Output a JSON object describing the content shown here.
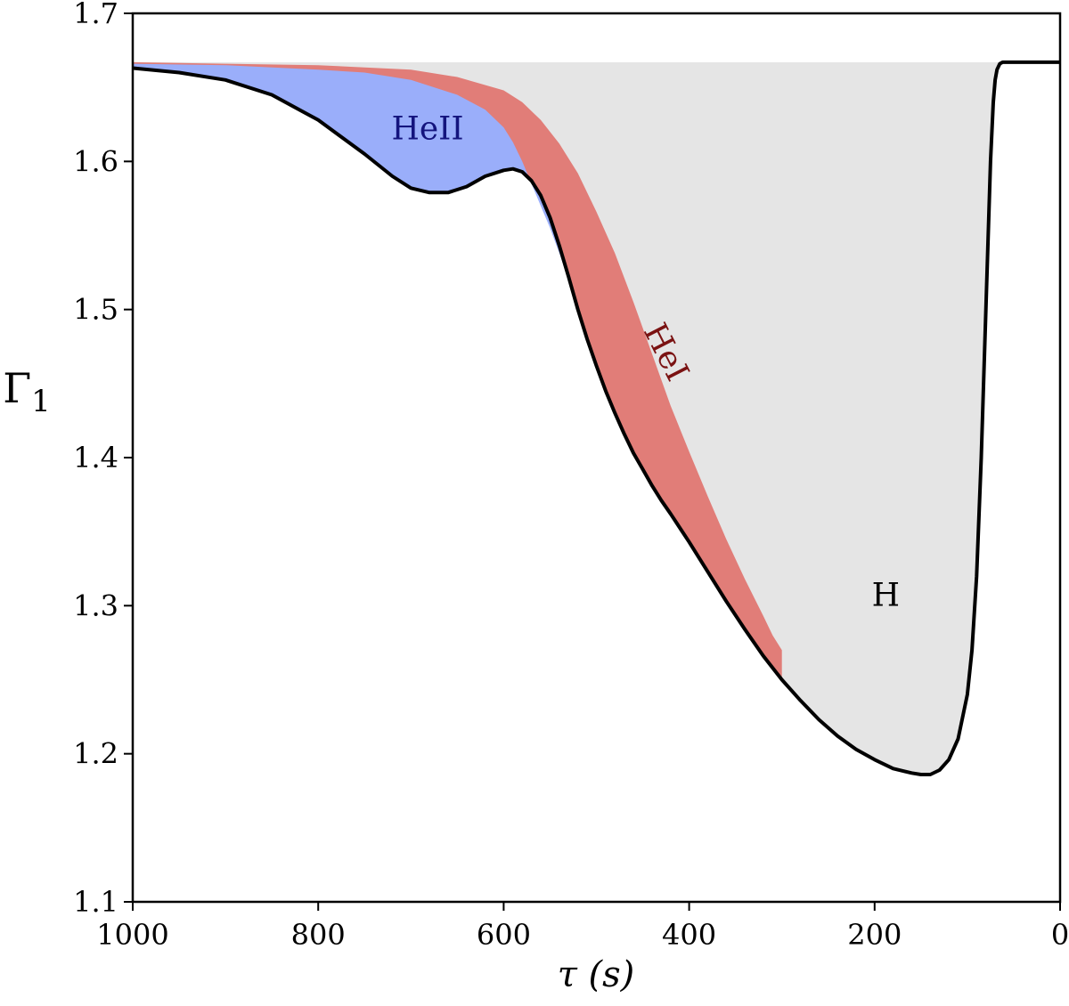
{
  "chart_data": {
    "type": "area",
    "xlabel": "τ (s)",
    "ylabel": "Γ",
    "ylabel_subscript": "1",
    "xlim": [
      1000,
      0
    ],
    "ylim": [
      1.1,
      1.7
    ],
    "x_reversed": true,
    "grid": false,
    "x_ticks": [
      1000,
      800,
      600,
      400,
      200,
      0
    ],
    "x_tick_labels": [
      "1000",
      "800",
      "600",
      "400",
      "200",
      "0"
    ],
    "y_ticks": [
      1.1,
      1.2,
      1.3,
      1.4,
      1.5,
      1.6,
      1.7
    ],
    "y_tick_labels": [
      "1.1",
      "1.2",
      "1.3",
      "1.4",
      "1.5",
      "1.6",
      "1.7"
    ],
    "reference_level": 1.667,
    "series": [
      {
        "role": "total",
        "color": "#000000",
        "x": [
          1000,
          950,
          900,
          850,
          800,
          750,
          720,
          700,
          680,
          660,
          640,
          620,
          600,
          590,
          580,
          570,
          560,
          550,
          540,
          530,
          520,
          510,
          500,
          490,
          480,
          470,
          460,
          450,
          440,
          430,
          420,
          400,
          380,
          360,
          340,
          320,
          300,
          280,
          260,
          240,
          220,
          200,
          180,
          160,
          150,
          140,
          130,
          120,
          110,
          100,
          95,
          90,
          85,
          80,
          75,
          72,
          70,
          68,
          65,
          62,
          60,
          50,
          30,
          0
        ],
        "y": [
          1.663,
          1.66,
          1.655,
          1.645,
          1.628,
          1.605,
          1.59,
          1.582,
          1.579,
          1.579,
          1.583,
          1.59,
          1.594,
          1.595,
          1.593,
          1.587,
          1.577,
          1.562,
          1.543,
          1.522,
          1.5,
          1.48,
          1.462,
          1.445,
          1.43,
          1.416,
          1.403,
          1.392,
          1.381,
          1.371,
          1.362,
          1.343,
          1.323,
          1.303,
          1.284,
          1.266,
          1.25,
          1.236,
          1.223,
          1.212,
          1.203,
          1.196,
          1.19,
          1.187,
          1.186,
          1.186,
          1.189,
          1.196,
          1.21,
          1.24,
          1.27,
          1.32,
          1.4,
          1.5,
          1.6,
          1.64,
          1.655,
          1.662,
          1.666,
          1.667,
          1.667,
          1.667,
          1.667,
          1.667
        ]
      },
      {
        "role": "HeII boundary",
        "color": "#9aaefa",
        "x": [
          1000,
          900,
          800,
          750,
          700,
          650,
          620,
          600,
          590,
          580,
          570,
          560,
          550,
          540,
          530
        ],
        "y": [
          1.666,
          1.665,
          1.662,
          1.66,
          1.655,
          1.645,
          1.635,
          1.623,
          1.613,
          1.6,
          1.585,
          1.57,
          1.555,
          1.538,
          1.52
        ]
      },
      {
        "role": "HeI boundary",
        "color": "#e17d78",
        "x": [
          1000,
          900,
          800,
          700,
          650,
          600,
          580,
          560,
          540,
          520,
          500,
          480,
          460,
          440,
          420,
          400,
          380,
          360,
          340,
          320,
          310,
          300
        ],
        "y": [
          1.667,
          1.666,
          1.665,
          1.662,
          1.657,
          1.648,
          1.64,
          1.628,
          1.612,
          1.592,
          1.566,
          1.538,
          1.505,
          1.47,
          1.435,
          1.404,
          1.374,
          1.345,
          1.318,
          1.293,
          1.28,
          1.27
        ]
      }
    ],
    "fill_colors": {
      "HeII": "#9aaefa",
      "HeI": "#e17d78",
      "H": "#e5e5e5"
    },
    "annotations": [
      {
        "text": "HeII",
        "x": 682,
        "y": 1.615,
        "color": "#14147e",
        "rotation": 0
      },
      {
        "text": "HeI",
        "x": 435,
        "y": 1.468,
        "color": "#7a1212",
        "rotation": 63
      },
      {
        "text": "H",
        "x": 188,
        "y": 1.3,
        "color": "#000000",
        "rotation": 0
      }
    ]
  }
}
